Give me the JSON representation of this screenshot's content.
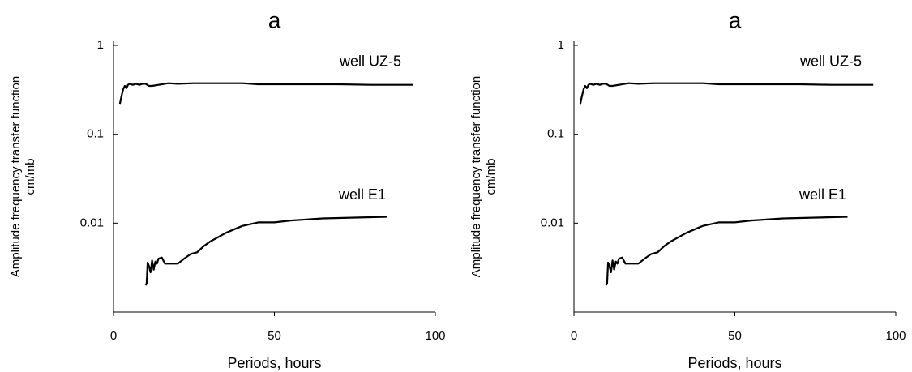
{
  "chart_data": [
    {
      "type": "line",
      "title": "a",
      "xlabel": "Periods, hours",
      "ylabel": [
        "Amplitude frequency transfer function",
        "cm/mb"
      ],
      "xlim": [
        0,
        100
      ],
      "xticks": [
        0,
        50,
        100
      ],
      "ylim": [
        0.001,
        1
      ],
      "yticks": [
        1,
        0.1,
        0.01
      ],
      "ylog": true,
      "grid": false,
      "series": [
        {
          "name": "well UZ-5",
          "color": "#000000",
          "x": [
            2,
            2.5,
            3,
            3.5,
            4,
            4.5,
            5,
            6,
            7,
            8,
            9,
            10,
            11,
            12,
            14,
            17,
            20,
            25,
            30,
            40,
            45,
            50,
            60,
            70,
            80,
            93
          ],
          "values": [
            0.22,
            0.27,
            0.32,
            0.35,
            0.33,
            0.36,
            0.37,
            0.36,
            0.37,
            0.36,
            0.37,
            0.37,
            0.35,
            0.35,
            0.36,
            0.375,
            0.37,
            0.375,
            0.375,
            0.375,
            0.365,
            0.365,
            0.365,
            0.365,
            0.36,
            0.36
          ]
        },
        {
          "name": "well E1",
          "color": "#000000",
          "x": [
            10,
            10.3,
            10.6,
            11,
            11.5,
            12,
            12.5,
            13,
            13.5,
            14,
            15,
            16,
            18,
            20,
            22,
            24,
            26,
            28,
            30,
            35,
            40,
            45,
            50,
            55,
            65,
            85
          ],
          "values": [
            0.002,
            0.0021,
            0.0036,
            0.0033,
            0.0028,
            0.0038,
            0.003,
            0.0037,
            0.0035,
            0.004,
            0.0041,
            0.0035,
            0.0035,
            0.0035,
            0.004,
            0.0045,
            0.0047,
            0.0055,
            0.0062,
            0.0078,
            0.0093,
            0.0102,
            0.0102,
            0.0107,
            0.0113,
            0.0118
          ]
        }
      ]
    },
    {
      "type": "line",
      "title": "a",
      "xlabel": "Periods, hours",
      "ylabel": [
        "Amplitude frequency transfer function",
        "cm/mb"
      ],
      "xlim": [
        0,
        100
      ],
      "xticks": [
        0,
        50,
        100
      ],
      "ylim": [
        0.001,
        1
      ],
      "yticks": [
        1,
        0.1,
        0.01
      ],
      "ylog": true,
      "grid": false,
      "series": [
        {
          "name": "well UZ-5",
          "color": "#000000",
          "x": [
            2,
            2.5,
            3,
            3.5,
            4,
            4.5,
            5,
            6,
            7,
            8,
            9,
            10,
            11,
            12,
            14,
            17,
            20,
            25,
            30,
            40,
            45,
            50,
            60,
            70,
            80,
            93
          ],
          "values": [
            0.22,
            0.27,
            0.32,
            0.35,
            0.33,
            0.36,
            0.37,
            0.36,
            0.37,
            0.36,
            0.37,
            0.37,
            0.35,
            0.35,
            0.36,
            0.375,
            0.37,
            0.375,
            0.375,
            0.375,
            0.365,
            0.365,
            0.365,
            0.365,
            0.36,
            0.36
          ]
        },
        {
          "name": "well E1",
          "color": "#000000",
          "x": [
            10,
            10.3,
            10.6,
            11,
            11.5,
            12,
            12.5,
            13,
            13.5,
            14,
            15,
            16,
            18,
            20,
            22,
            24,
            26,
            28,
            30,
            35,
            40,
            45,
            50,
            55,
            65,
            85
          ],
          "values": [
            0.002,
            0.0021,
            0.0036,
            0.0033,
            0.0028,
            0.0038,
            0.003,
            0.0037,
            0.0035,
            0.004,
            0.0041,
            0.0035,
            0.0035,
            0.0035,
            0.004,
            0.0045,
            0.0047,
            0.0055,
            0.0062,
            0.0078,
            0.0093,
            0.0102,
            0.0102,
            0.0107,
            0.0113,
            0.0118
          ]
        }
      ]
    }
  ]
}
